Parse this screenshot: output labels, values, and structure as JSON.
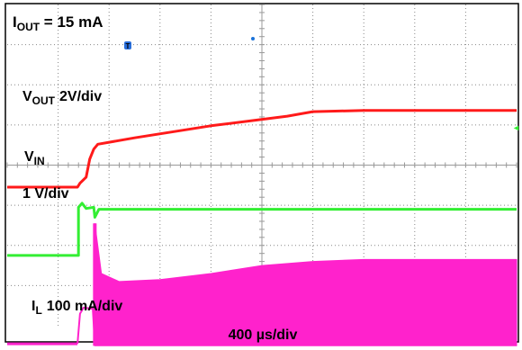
{
  "chart_data": {
    "type": "line",
    "title": "",
    "time_scale": "400 µs/div",
    "grid": true,
    "conditions": {
      "prefix": "I",
      "sub": "OUT",
      "rest": " = 15 mA"
    },
    "channels": [
      {
        "name": "VOUT",
        "label_main": "V",
        "label_sub": "OUT",
        "scale": "2V/div",
        "color": "#ff1a1a",
        "x_div": [
          0,
          1.38,
          1.43,
          1.55,
          1.62,
          1.7,
          1.78,
          2.5,
          4,
          5.5,
          6.0,
          7.0,
          10
        ],
        "y_div": [
          -0.55,
          -0.55,
          -0.45,
          -0.3,
          0.15,
          0.4,
          0.52,
          0.68,
          0.98,
          1.22,
          1.33,
          1.36,
          1.36
        ]
      },
      {
        "name": "VIN",
        "label_main": "V",
        "label_sub": "IN",
        "scale": "1 V/div",
        "color": "#33ee33",
        "x_div": [
          0,
          1.4,
          1.4,
          1.47,
          1.55,
          1.7,
          1.72,
          1.8,
          10
        ],
        "y_div": [
          -2.25,
          -2.25,
          -1.05,
          -0.95,
          -1.08,
          -1.05,
          -1.3,
          -1.1,
          -1.1
        ]
      },
      {
        "name": "IL",
        "label_main": "I",
        "label_sub": "L",
        "scale": "100 mA/div",
        "color": "#ff22cc",
        "baseline_x_div": [
          0,
          1.38
        ],
        "baseline_div": -4.45,
        "precharge_x_div": [
          1.38,
          1.43,
          1.5,
          1.68,
          1.72
        ],
        "precharge_div": [
          -4.45,
          -3.7,
          -3.55,
          -3.58,
          -4.45
        ],
        "spike_x_div": 1.72,
        "spike_peak_div": -1.45,
        "envelope_x_div": [
          1.72,
          1.85,
          2.2,
          3,
          4,
          5,
          6,
          7,
          8,
          10
        ],
        "envelope_top_div": [
          -1.45,
          -2.7,
          -2.9,
          -2.85,
          -2.7,
          -2.5,
          -2.4,
          -2.35,
          -2.35,
          -2.35
        ],
        "envelope_bottom_div": -4.5
      }
    ]
  },
  "markers": {
    "trigger_marker": "T",
    "vin_right_marker": "◄"
  }
}
